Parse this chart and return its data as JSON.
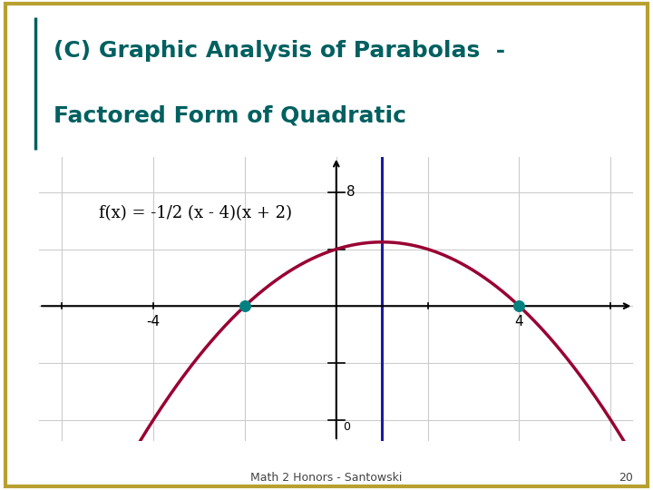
{
  "title_line1": "(C) Graphic Analysis of Parabolas  -",
  "title_line2": "Factored Form of Quadratic",
  "title_color": "#006060",
  "equation_text": "f(x) = -1/2 (x - 4)(x + 2)",
  "equation_color": "#000000",
  "parabola_color": "#990033",
  "parabola_lw": 2.5,
  "axis_of_symmetry_x": 1.0,
  "axis_of_symmetry_color": "#1a1aaa",
  "axis_of_symmetry_lw": 2.2,
  "roots": [
    -2,
    4
  ],
  "root_dot_color": "#008080",
  "root_dot_size": 70,
  "xlim": [
    -6.5,
    6.5
  ],
  "ylim": [
    -9.5,
    10.5
  ],
  "x_ticks": [
    -6,
    -4,
    -2,
    0,
    2,
    4,
    6
  ],
  "y_ticks": [
    -8,
    -4,
    0,
    4,
    8
  ],
  "grid_color": "#cccccc",
  "grid_lw": 0.8,
  "bg_color": "#ffffff",
  "border_color": "#b8a030",
  "footer_text": "Math 2 Honors - Santowski",
  "page_number": "20",
  "footer_color": "#444444",
  "footer_fontsize": 9,
  "title_fontsize": 18,
  "eq_fontsize": 13
}
